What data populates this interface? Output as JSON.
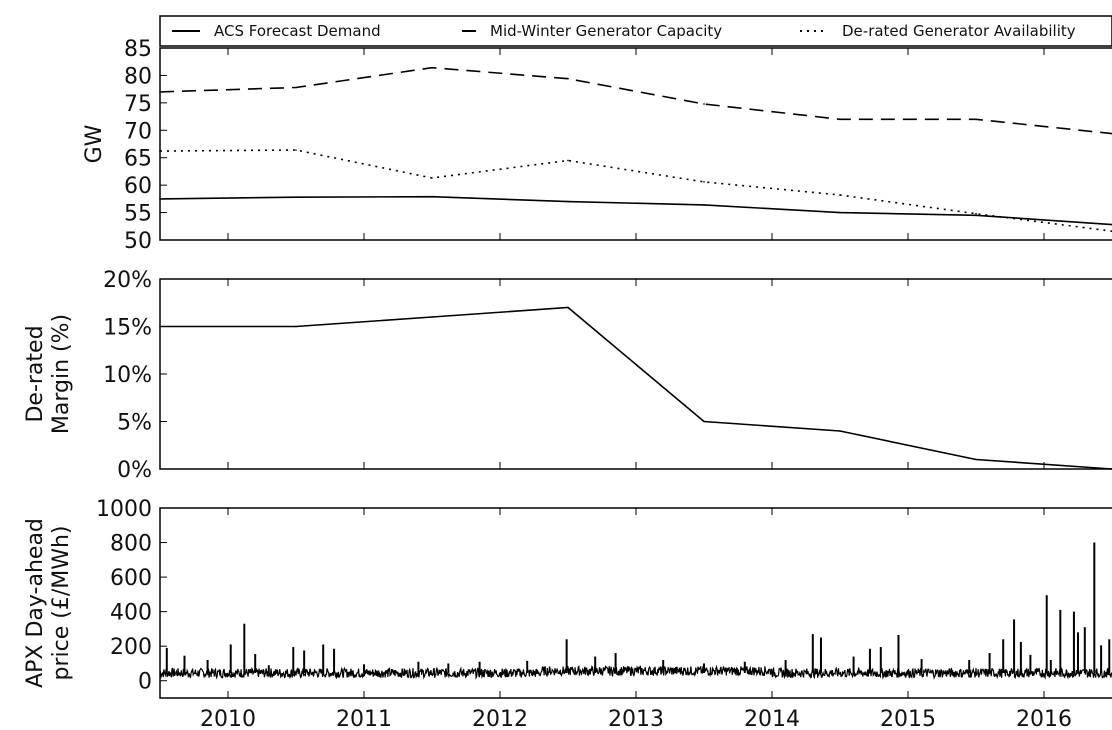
{
  "chart_data": [
    {
      "type": "line",
      "ylabel": "GW",
      "ylim": [
        50,
        85
      ],
      "yticks": [
        50,
        55,
        60,
        65,
        70,
        75,
        80,
        85
      ],
      "ytick_labels": [
        "50",
        "55",
        "60",
        "65",
        "70",
        "75",
        "80",
        "85"
      ],
      "x": [
        2009.5,
        2010.5,
        2011.5,
        2012.5,
        2013.5,
        2014.5,
        2015.5,
        2016.5
      ],
      "legend_position": "top",
      "series": [
        {
          "name": "ACS Forecast Demand",
          "style": "solid",
          "values": [
            57.5,
            57.8,
            57.9,
            57.0,
            56.4,
            55.0,
            54.5,
            52.8
          ]
        },
        {
          "name": "Mid-Winter Generator Capacity",
          "style": "dashed",
          "values": [
            77.0,
            77.8,
            81.4,
            79.4,
            74.8,
            72.0,
            72.0,
            69.4
          ]
        },
        {
          "name": "De-rated Generator Availability",
          "style": "dotted",
          "values": [
            66.2,
            66.4,
            61.3,
            64.5,
            60.6,
            58.2,
            54.8,
            51.6
          ]
        }
      ]
    },
    {
      "type": "line",
      "ylabel": "De-rated Margin (%)",
      "ylim": [
        0,
        20
      ],
      "yticks": [
        0,
        5,
        10,
        15,
        20
      ],
      "ytick_labels": [
        "0%",
        "5%",
        "10%",
        "15%",
        "20%"
      ],
      "x": [
        2009.5,
        2010.5,
        2011.5,
        2012.5,
        2013.5,
        2014.5,
        2015.5,
        2016.5
      ],
      "series": [
        {
          "style": "solid",
          "values": [
            15,
            15,
            16,
            17,
            5,
            4,
            1,
            0
          ]
        }
      ]
    },
    {
      "type": "line",
      "ylabel": "APX Day-ahead price (£/MWh)",
      "ylim": [
        -100,
        1000
      ],
      "yticks": [
        0,
        200,
        400,
        600,
        800,
        1000
      ],
      "ytick_labels": [
        "0",
        "200",
        "400",
        "600",
        "800",
        "1000"
      ],
      "baseline": 45,
      "spikes": [
        [
          2009.55,
          190
        ],
        [
          2009.68,
          145
        ],
        [
          2009.85,
          120
        ],
        [
          2010.02,
          210
        ],
        [
          2010.12,
          330
        ],
        [
          2010.2,
          155
        ],
        [
          2010.3,
          90
        ],
        [
          2010.48,
          195
        ],
        [
          2010.56,
          175
        ],
        [
          2010.7,
          210
        ],
        [
          2010.78,
          185
        ],
        [
          2011.0,
          95
        ],
        [
          2011.4,
          110
        ],
        [
          2011.62,
          100
        ],
        [
          2011.85,
          110
        ],
        [
          2012.2,
          115
        ],
        [
          2012.49,
          240
        ],
        [
          2012.7,
          140
        ],
        [
          2012.85,
          160
        ],
        [
          2013.2,
          120
        ],
        [
          2013.5,
          100
        ],
        [
          2013.8,
          110
        ],
        [
          2014.1,
          120
        ],
        [
          2014.3,
          270
        ],
        [
          2014.36,
          250
        ],
        [
          2014.6,
          140
        ],
        [
          2014.72,
          185
        ],
        [
          2014.8,
          195
        ],
        [
          2014.93,
          265
        ],
        [
          2015.1,
          125
        ],
        [
          2015.45,
          120
        ],
        [
          2015.6,
          160
        ],
        [
          2015.7,
          240
        ],
        [
          2015.78,
          355
        ],
        [
          2015.83,
          225
        ],
        [
          2015.9,
          150
        ],
        [
          2016.02,
          495
        ],
        [
          2016.12,
          410
        ],
        [
          2016.22,
          400
        ],
        [
          2016.25,
          280
        ],
        [
          2016.3,
          310
        ],
        [
          2016.37,
          800
        ],
        [
          2016.42,
          205
        ],
        [
          2016.48,
          240
        ],
        [
          2016.05,
          120
        ]
      ]
    }
  ],
  "shared_x": {
    "xlim": [
      2009.5,
      2016.5
    ],
    "ticks": [
      2010,
      2011,
      2012,
      2013,
      2014,
      2015,
      2016
    ],
    "tick_labels": [
      "2010",
      "2011",
      "2012",
      "2013",
      "2014",
      "2015",
      "2016"
    ]
  }
}
